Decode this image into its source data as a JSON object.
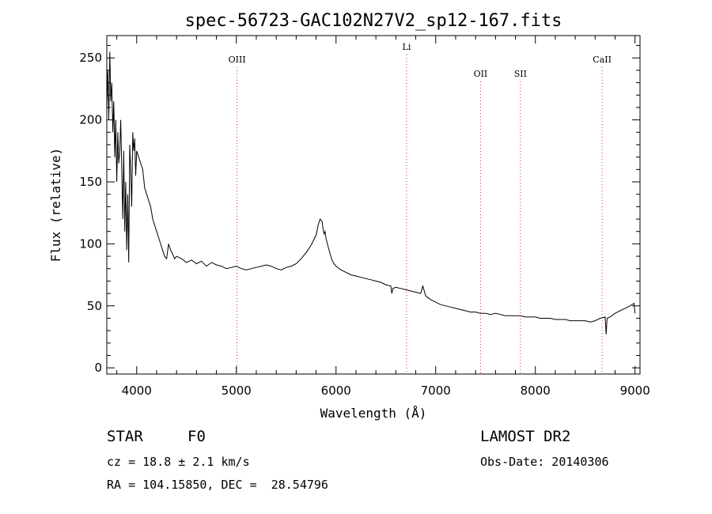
{
  "chart_data": {
    "type": "line",
    "title": "spec-56723-GAC102N27V2_sp12-167.fits",
    "xlabel": "Wavelength (Å)",
    "ylabel": "Flux (relative)",
    "xlim": [
      3700,
      9050
    ],
    "ylim": [
      -5,
      268
    ],
    "xticks": [
      4000,
      5000,
      6000,
      7000,
      8000,
      9000
    ],
    "yticks": [
      0,
      50,
      100,
      150,
      200,
      250
    ],
    "grid": false,
    "series": [
      {
        "x": [
          3700,
          3710,
          3720,
          3730,
          3740,
          3750,
          3760,
          3770,
          3780,
          3790,
          3800,
          3810,
          3820,
          3830,
          3840,
          3850,
          3860,
          3870,
          3880,
          3890,
          3900,
          3910,
          3920,
          3930,
          3940,
          3950,
          3960,
          3970,
          3980,
          3990,
          4000,
          4020,
          4040,
          4060,
          4080,
          4100,
          4120,
          4140,
          4160,
          4180,
          4200,
          4220,
          4240,
          4260,
          4280,
          4300,
          4320,
          4340,
          4360,
          4380,
          4400,
          4450,
          4500,
          4550,
          4600,
          4650,
          4700,
          4750,
          4800,
          4850,
          4900,
          4950,
          5000,
          5050,
          5100,
          5150,
          5200,
          5250,
          5300,
          5350,
          5400,
          5450,
          5500,
          5550,
          5600,
          5650,
          5700,
          5750,
          5800,
          5820,
          5840,
          5860,
          5870,
          5880,
          5890,
          5900,
          5920,
          5940,
          5960,
          5980,
          6000,
          6050,
          6100,
          6150,
          6200,
          6250,
          6300,
          6350,
          6400,
          6450,
          6500,
          6550,
          6560,
          6570,
          6600,
          6650,
          6700,
          6750,
          6800,
          6850,
          6870,
          6900,
          6950,
          7000,
          7050,
          7100,
          7150,
          7200,
          7250,
          7300,
          7350,
          7400,
          7450,
          7500,
          7550,
          7600,
          7650,
          7700,
          7750,
          7800,
          7850,
          7900,
          7950,
          8000,
          8050,
          8100,
          8150,
          8200,
          8250,
          8300,
          8350,
          8400,
          8450,
          8500,
          8550,
          8600,
          8650,
          8700,
          8710,
          8720,
          8750,
          8800,
          8850,
          8900,
          8950,
          8990,
          9000
        ],
        "y": [
          210,
          240,
          200,
          255,
          215,
          230,
          190,
          215,
          170,
          200,
          150,
          190,
          165,
          175,
          200,
          160,
          120,
          175,
          110,
          150,
          95,
          140,
          85,
          180,
          160,
          130,
          190,
          175,
          185,
          155,
          175,
          170,
          165,
          160,
          145,
          140,
          135,
          130,
          120,
          115,
          110,
          105,
          100,
          95,
          90,
          88,
          100,
          95,
          92,
          88,
          90,
          88,
          85,
          87,
          84,
          86,
          82,
          85,
          83,
          82,
          80,
          81,
          82,
          80,
          79,
          80,
          81,
          82,
          83,
          82,
          80,
          79,
          81,
          82,
          84,
          88,
          93,
          99,
          107,
          115,
          120,
          118,
          112,
          108,
          110,
          104,
          98,
          92,
          87,
          84,
          82,
          79,
          77,
          75,
          74,
          73,
          72,
          71,
          70,
          69,
          67,
          66,
          60,
          64,
          65,
          64,
          63,
          62,
          61,
          60,
          66,
          58,
          55,
          53,
          51,
          50,
          49,
          48,
          47,
          46,
          45,
          45,
          44,
          44,
          43,
          44,
          43,
          42,
          42,
          42,
          42,
          41,
          41,
          41,
          40,
          40,
          40,
          39,
          39,
          39,
          38,
          38,
          38,
          38,
          37,
          38,
          40,
          41,
          27,
          40,
          41,
          44,
          46,
          48,
          50,
          52,
          44
        ]
      }
    ],
    "annotations": [
      {
        "label": "OIII",
        "x": 5007
      },
      {
        "label": "Li",
        "x": 6708
      },
      {
        "label": "OII",
        "x": 7450
      },
      {
        "label": "SII",
        "x": 7850
      },
      {
        "label": "CaII",
        "x": 8670
      }
    ]
  },
  "info": {
    "star_type": "STAR",
    "spec_class": "F0",
    "survey": "LAMOST DR2",
    "cz": "cz = 18.8 ± 2.1 km/s",
    "obs_date": "Obs-Date: 20140306",
    "radec": "RA = 104.15850, DEC =  28.54796"
  }
}
